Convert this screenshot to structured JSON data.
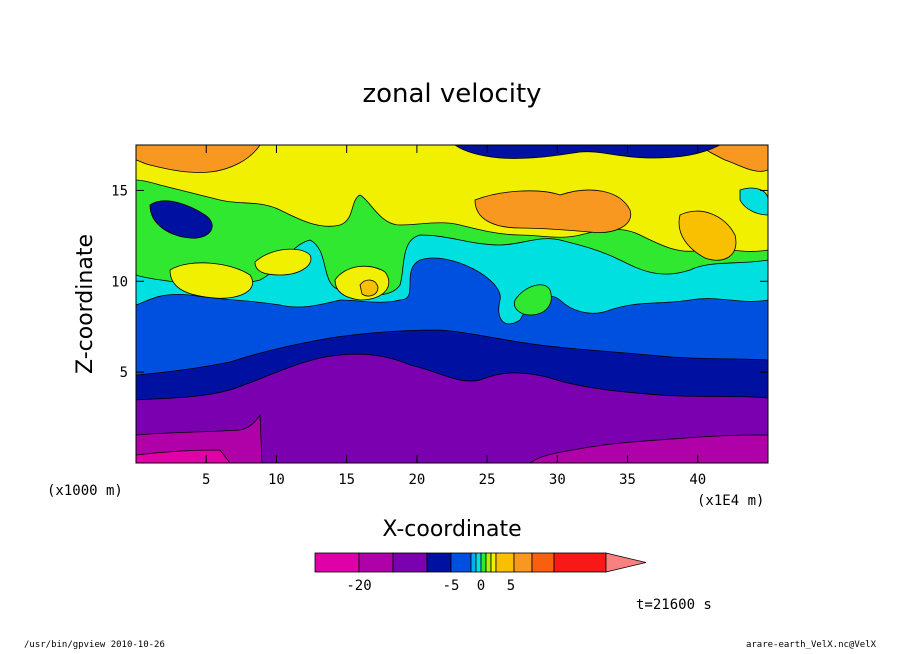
{
  "chart_data": {
    "type": "heatmap",
    "title": "zonal velocity",
    "xlabel": "X-coordinate",
    "ylabel": "Z-coordinate",
    "x_unit_left": "(x1000 m)",
    "x_unit_right": "(x1E4 m)",
    "xlim": [
      0,
      45
    ],
    "ylim": [
      0,
      17.5
    ],
    "x_ticks": [
      "5",
      "10",
      "15",
      "20",
      "25",
      "30",
      "35",
      "40"
    ],
    "y_ticks": [
      "5",
      "10",
      "15"
    ],
    "contour_levels": [
      -25,
      -20,
      -15,
      -10,
      -5,
      -4,
      -3,
      -2,
      -1,
      0,
      1,
      2,
      5,
      10,
      15,
      20
    ],
    "colorbar": {
      "colors": [
        "#e000a8",
        "#b000a8",
        "#7a00b0",
        "#0010a0",
        "#0050e0",
        "#00b0f0",
        "#00e0e0",
        "#30e830",
        "#b0f000",
        "#f0f000",
        "#f8c000",
        "#f89820",
        "#f86010",
        "#f81818",
        "#f88080"
      ],
      "labels": [
        "-20",
        "-5",
        "0",
        "5"
      ]
    },
    "annotation": "t=21600 s"
  },
  "footer": {
    "left": "/usr/bin/gpview   2010-10-26",
    "right": "arare-earth_VelX.nc@VelX"
  }
}
